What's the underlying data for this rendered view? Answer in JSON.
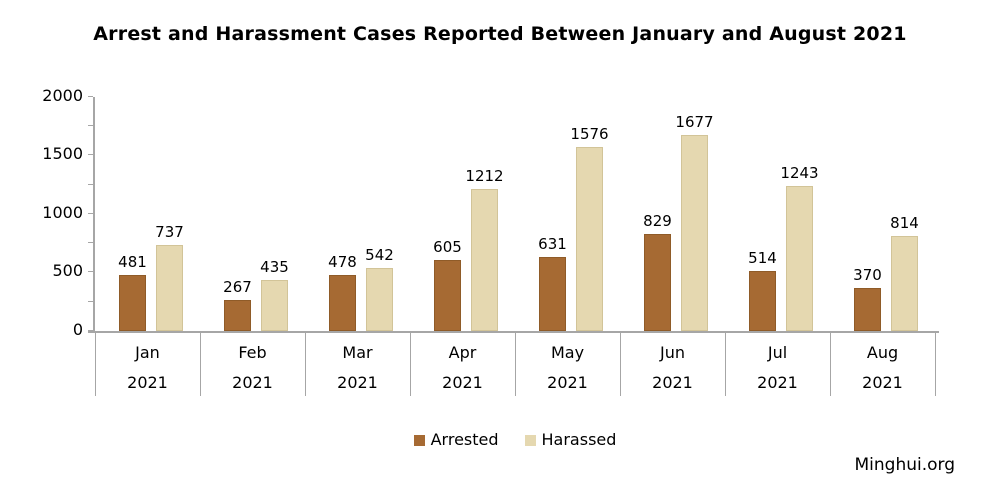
{
  "chart_data": {
    "type": "bar",
    "title": "Arrest and Harassment Cases Reported Between January and August 2021",
    "categories": [
      "Jan",
      "Feb",
      "Mar",
      "Apr",
      "May",
      "Jun",
      "Jul",
      "Aug"
    ],
    "x_year_row": "2021",
    "series": [
      {
        "name": "Arrested",
        "color": "#A66A33",
        "border_color": "#8F5B28",
        "values": [
          481,
          267,
          478,
          605,
          631,
          829,
          514,
          370
        ]
      },
      {
        "name": "Harassed",
        "color": "#E5D8B0",
        "border_color": "#D2C498",
        "values": [
          737,
          435,
          542,
          1212,
          1576,
          1677,
          1243,
          814
        ]
      }
    ],
    "xlabel": "",
    "ylabel": "",
    "ylim": [
      0,
      2000
    ],
    "ytick_step": 500,
    "yminor_step": 250,
    "ytick_labels": [
      "0",
      "500",
      "1000",
      "1500",
      "2000"
    ],
    "grid": false,
    "value_labels": true,
    "legend_position": "bottom",
    "axis_color": "#A6A6A6",
    "text_color": "#000000"
  },
  "watermark": "Minghui.org"
}
